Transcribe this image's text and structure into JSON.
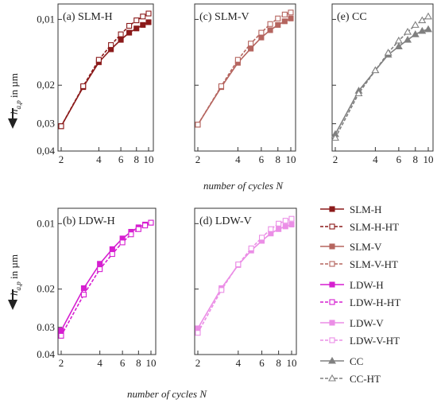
{
  "figure": {
    "ylabel_top": "h",
    "ylabel_sub": "a,p",
    "ylabel_unit": " in µm",
    "xlabel": "number of cycles N"
  },
  "chart_data": [
    {
      "type": "line",
      "title": "(a) SLM-H",
      "x": [
        2,
        3,
        4,
        5,
        6,
        7,
        8,
        9,
        10
      ],
      "yscale": "log",
      "yinverted": true,
      "ylim": [
        0.04,
        0.0085
      ],
      "xscale": "log",
      "xlim": [
        2,
        10
      ],
      "yticks": [
        "0,01",
        "0,02",
        "0,03",
        "0,04"
      ],
      "xticks": [
        "2",
        "4",
        "6",
        "8",
        "10"
      ],
      "series": [
        {
          "name": "SLM-H",
          "style": "solid",
          "marker": "square-filled",
          "color": "#8b1a1a",
          "values": [
            0.0308,
            0.0204,
            0.0157,
            0.0137,
            0.0124,
            0.0115,
            0.011,
            0.0106,
            0.0103
          ]
        },
        {
          "name": "SLM-H-HT",
          "style": "dashed",
          "marker": "square-open",
          "color": "#8b1a1a",
          "values": [
            0.0308,
            0.0202,
            0.0153,
            0.0131,
            0.0117,
            0.0107,
            0.0101,
            0.0097,
            0.0094
          ]
        }
      ]
    },
    {
      "type": "line",
      "title": "(c) SLM-V",
      "x": [
        2,
        3,
        4,
        5,
        6,
        7,
        8,
        9,
        10
      ],
      "yscale": "log",
      "yinverted": true,
      "ylim": [
        0.04,
        0.0085
      ],
      "xscale": "log",
      "xlim": [
        2,
        10
      ],
      "xticks": [
        "2",
        "4",
        "6",
        "8",
        "10"
      ],
      "series": [
        {
          "name": "SLM-V",
          "style": "solid",
          "marker": "square-filled",
          "color": "#b5655f",
          "values": [
            0.0303,
            0.0204,
            0.0158,
            0.0136,
            0.0121,
            0.0112,
            0.0106,
            0.0102,
            0.0099
          ]
        },
        {
          "name": "SLM-V-HT",
          "style": "dashed",
          "marker": "square-open",
          "color": "#b5655f",
          "values": [
            0.0303,
            0.0202,
            0.0153,
            0.0129,
            0.0115,
            0.0105,
            0.0099,
            0.0095,
            0.0093
          ]
        }
      ]
    },
    {
      "type": "line",
      "title": "(e) CC",
      "x": [
        2,
        3,
        4,
        5,
        6,
        7,
        8,
        9,
        10
      ],
      "yscale": "log",
      "yinverted": true,
      "ylim": [
        0.04,
        0.0085
      ],
      "xscale": "log",
      "xlim": [
        2,
        10
      ],
      "xticks": [
        "2",
        "4",
        "6",
        "8",
        "10"
      ],
      "series": [
        {
          "name": "CC",
          "style": "solid",
          "marker": "triangle-filled",
          "color": "#808080",
          "values": [
            0.0335,
            0.0212,
            0.0171,
            0.0145,
            0.0133,
            0.0124,
            0.0117,
            0.0113,
            0.0111
          ]
        },
        {
          "name": "CC-HT",
          "style": "dashed",
          "marker": "triangle-open",
          "color": "#808080",
          "values": [
            0.0348,
            0.0218,
            0.0171,
            0.0142,
            0.0125,
            0.0114,
            0.0106,
            0.0101,
            0.0097
          ]
        }
      ]
    },
    {
      "type": "line",
      "title": "(b) LDW-H",
      "x": [
        2,
        3,
        4,
        5,
        6,
        7,
        8,
        9,
        10
      ],
      "yscale": "log",
      "yinverted": true,
      "ylim": [
        0.04,
        0.0085
      ],
      "xscale": "log",
      "xlim": [
        2,
        10
      ],
      "yticks": [
        "0.01",
        "0.02",
        "0.03",
        "0.04"
      ],
      "xticks": [
        "2",
        "4",
        "6",
        "8",
        "10"
      ],
      "series": [
        {
          "name": "LDW-H",
          "style": "solid",
          "marker": "square-filled",
          "color": "#d61fd0",
          "values": [
            0.031,
            0.0198,
            0.0153,
            0.0131,
            0.0117,
            0.0109,
            0.0104,
            0.0101,
            0.0099
          ]
        },
        {
          "name": "LDW-H-HT",
          "style": "dashed",
          "marker": "square-open",
          "color": "#d61fd0",
          "values": [
            0.0328,
            0.0212,
            0.0162,
            0.0138,
            0.0122,
            0.0112,
            0.0106,
            0.0102,
            0.0099
          ]
        }
      ]
    },
    {
      "type": "line",
      "title": "(d) LDW-V",
      "x": [
        2,
        3,
        4,
        5,
        6,
        7,
        8,
        9,
        10
      ],
      "yscale": "log",
      "yinverted": true,
      "ylim": [
        0.04,
        0.0085
      ],
      "xscale": "log",
      "xlim": [
        2,
        10
      ],
      "xticks": [
        "2",
        "4",
        "6",
        "8",
        "10"
      ],
      "series": [
        {
          "name": "LDW-V",
          "style": "solid",
          "marker": "square-filled",
          "color": "#eb8ee6",
          "values": [
            0.0303,
            0.0198,
            0.0155,
            0.0133,
            0.012,
            0.0111,
            0.0106,
            0.0103,
            0.0101
          ]
        },
        {
          "name": "LDW-V-HT",
          "style": "dashed",
          "marker": "square-open",
          "color": "#eb8ee6",
          "values": [
            0.0318,
            0.0202,
            0.0154,
            0.013,
            0.0116,
            0.0106,
            0.01,
            0.0097,
            0.0095
          ]
        }
      ]
    }
  ],
  "legend": [
    {
      "label": "SLM-H",
      "style": "solid",
      "marker": "square-filled",
      "color": "#8b1a1a"
    },
    {
      "label": "SLM-H-HT",
      "style": "dashed",
      "marker": "square-open",
      "color": "#8b1a1a"
    },
    {
      "label": "SLM-V",
      "style": "solid",
      "marker": "square-filled",
      "color": "#b5655f"
    },
    {
      "label": "SLM-V-HT",
      "style": "dashed",
      "marker": "square-open",
      "color": "#b5655f"
    },
    {
      "label": "LDW-H",
      "style": "solid",
      "marker": "square-filled",
      "color": "#d61fd0"
    },
    {
      "label": "LDW-H-HT",
      "style": "dashed",
      "marker": "square-open",
      "color": "#d61fd0"
    },
    {
      "label": "LDW-V",
      "style": "solid",
      "marker": "square-filled",
      "color": "#eb8ee6"
    },
    {
      "label": "LDW-V-HT",
      "style": "dashed",
      "marker": "square-open",
      "color": "#eb8ee6"
    },
    {
      "label": "CC",
      "style": "solid",
      "marker": "triangle-filled",
      "color": "#808080"
    },
    {
      "label": "CC-HT",
      "style": "dashed",
      "marker": "triangle-open",
      "color": "#808080"
    }
  ]
}
